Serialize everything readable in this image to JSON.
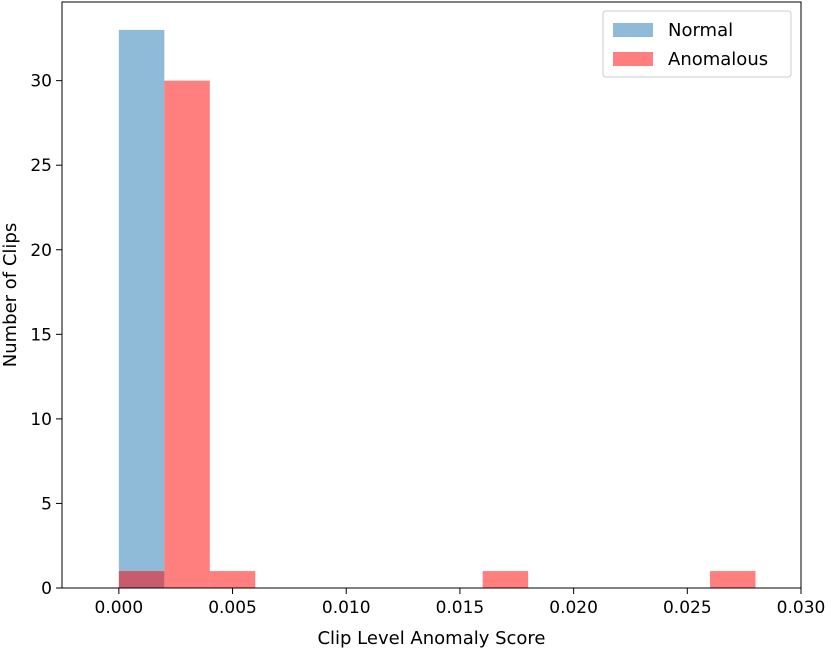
{
  "chart_data": {
    "type": "bar",
    "title": "",
    "xlabel": "Clip Level Anomaly Score",
    "ylabel": "Number of Clips",
    "xlim": [
      -0.0025,
      0.03
    ],
    "ylim": [
      0,
      34.65
    ],
    "xticks": [
      0.0,
      0.005,
      0.01,
      0.015,
      0.02,
      0.025,
      0.03
    ],
    "xtick_labels": [
      "0.000",
      "0.005",
      "0.010",
      "0.015",
      "0.020",
      "0.025",
      "0.030"
    ],
    "yticks": [
      0,
      5,
      10,
      15,
      20,
      25,
      30
    ],
    "ytick_labels": [
      "0",
      "5",
      "10",
      "15",
      "20",
      "25",
      "30"
    ],
    "grid": false,
    "legend_position": "top-right",
    "series": [
      {
        "name": "Normal",
        "color": "#1f77b4",
        "alpha": 0.5,
        "bins": [
          {
            "x0": 0.0,
            "x1": 0.002,
            "count": 33
          }
        ]
      },
      {
        "name": "Anomalous",
        "color": "#ff0000",
        "alpha": 0.5,
        "bins": [
          {
            "x0": 0.0,
            "x1": 0.002,
            "count": 1
          },
          {
            "x0": 0.002,
            "x1": 0.004,
            "count": 30
          },
          {
            "x0": 0.004,
            "x1": 0.006,
            "count": 1
          },
          {
            "x0": 0.016,
            "x1": 0.018,
            "count": 1
          },
          {
            "x0": 0.026,
            "x1": 0.028,
            "count": 1
          }
        ]
      }
    ]
  }
}
